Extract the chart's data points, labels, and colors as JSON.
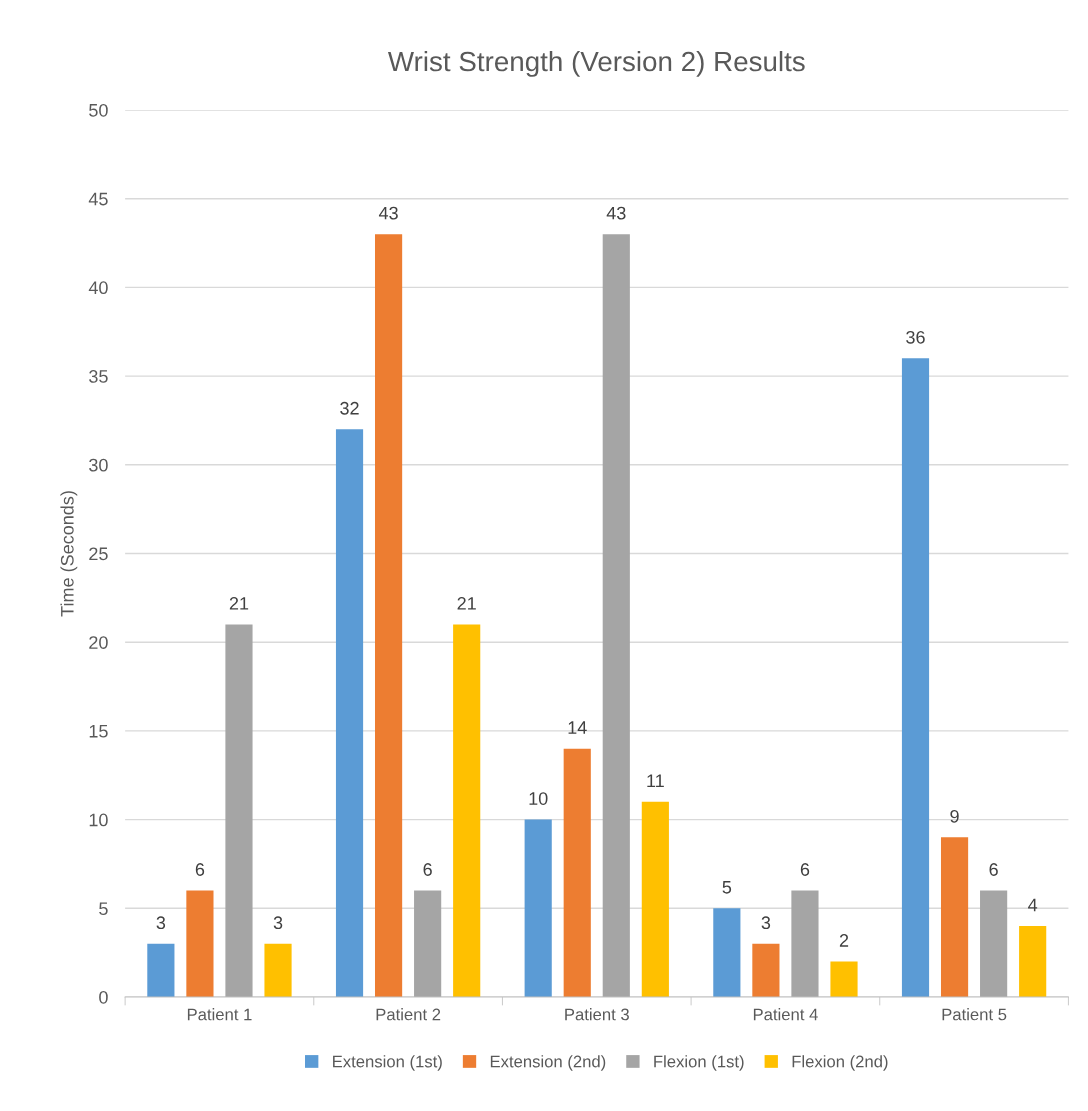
{
  "chart_data": {
    "type": "bar",
    "title": "Wrist Strength (Version 2) Results",
    "ylabel": "Time (Seconds)",
    "categories": [
      "Patient 1",
      "Patient 2",
      "Patient 3",
      "Patient 4",
      "Patient 5"
    ],
    "series": [
      {
        "name": "Extension (1st)",
        "color": "#5b9bd5",
        "values": [
          3,
          32,
          10,
          5,
          36
        ]
      },
      {
        "name": "Extension (2nd)",
        "color": "#ed7d31",
        "values": [
          6,
          43,
          14,
          3,
          9
        ]
      },
      {
        "name": "Flexion (1st)",
        "color": "#a5a5a5",
        "values": [
          21,
          6,
          43,
          6,
          6
        ]
      },
      {
        "name": "Flexion (2nd)",
        "color": "#ffc000",
        "values": [
          3,
          21,
          11,
          2,
          4
        ]
      }
    ],
    "ylim": [
      0,
      50
    ],
    "yticks": [
      0,
      5,
      10,
      15,
      20,
      25,
      30,
      35,
      40,
      45,
      50
    ],
    "grid": "y",
    "legend": "bottom",
    "data_labels": true
  }
}
